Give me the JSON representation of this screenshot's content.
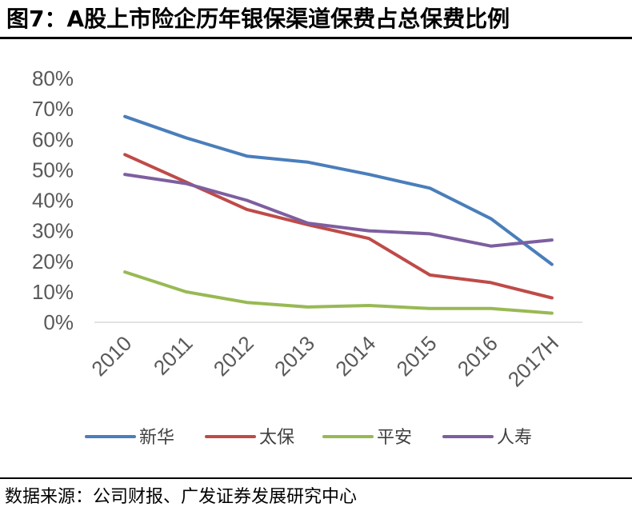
{
  "figure": {
    "title": "图7：A股上市险企历年银保渠道保费占总保费比例",
    "source": "数据来源：公司财报、广发证券发展研究中心"
  },
  "chart_data": {
    "type": "line",
    "title": "A股上市险企历年银保渠道保费占总保费比例",
    "xlabel": "",
    "ylabel": "",
    "categories": [
      "2010",
      "2011",
      "2012",
      "2013",
      "2014",
      "2015",
      "2016",
      "2017H"
    ],
    "y_ticks": [
      "0%",
      "10%",
      "20%",
      "30%",
      "40%",
      "50%",
      "60%",
      "70%",
      "80%"
    ],
    "ylim": [
      0,
      80
    ],
    "grid": false,
    "legend_position": "bottom",
    "series": [
      {
        "name": "新华",
        "color": "#4a7ebb",
        "values": [
          67.5,
          60.5,
          54.5,
          52.5,
          48.5,
          44,
          34,
          19
        ]
      },
      {
        "name": "太保",
        "color": "#be4b48",
        "values": [
          55,
          46,
          37,
          32,
          27.5,
          15.5,
          13,
          8
        ]
      },
      {
        "name": "平安",
        "color": "#98b954",
        "values": [
          16.5,
          10,
          6.5,
          5,
          5.5,
          4.5,
          4.5,
          3
        ]
      },
      {
        "name": "人寿",
        "color": "#7d5fa0",
        "values": [
          48.5,
          45.5,
          40,
          32.5,
          30,
          29,
          25,
          27
        ]
      }
    ]
  }
}
